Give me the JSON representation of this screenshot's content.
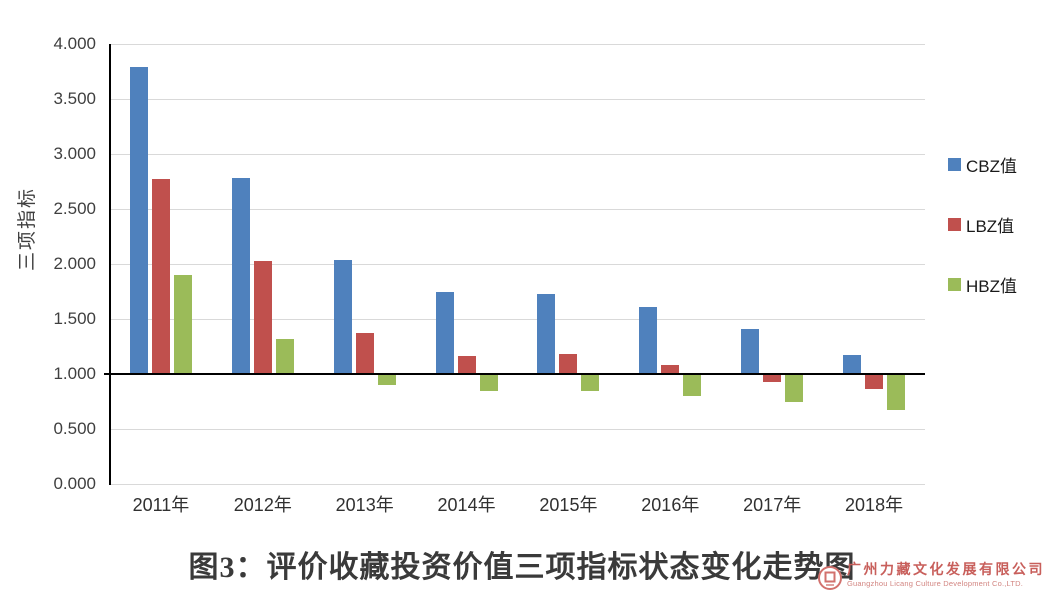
{
  "chart_data": {
    "type": "bar",
    "title": "图3：评价收藏投资价值三项指标状态变化走势图",
    "ylabel": "三项指标",
    "xlabel": "",
    "categories": [
      "2011年",
      "2012年",
      "2013年",
      "2014年",
      "2015年",
      "2016年",
      "2017年",
      "2018年"
    ],
    "series": [
      {
        "name": "CBZ值",
        "color": "#4F81BD",
        "values": [
          3.79,
          2.78,
          2.04,
          1.75,
          1.73,
          1.61,
          1.41,
          1.17
        ]
      },
      {
        "name": "LBZ值",
        "color": "#C0504D",
        "values": [
          2.77,
          2.03,
          1.37,
          1.16,
          1.18,
          1.08,
          0.93,
          0.86
        ]
      },
      {
        "name": "HBZ值",
        "color": "#9BBB59",
        "values": [
          1.9,
          1.32,
          0.9,
          0.85,
          0.85,
          0.8,
          0.75,
          0.67
        ]
      }
    ],
    "ylim": [
      0,
      4
    ],
    "ytick_step": 0.5,
    "ytick_decimals": 3,
    "baseline": 1.0,
    "grid": true,
    "legend_position": "right",
    "gridline_color": "#D9D9D9",
    "axis_color": "#000000"
  },
  "footer": {
    "title": "图3：评价收藏投资价值三项指标状态变化走势图",
    "logo": {
      "company_cn": "广州力藏文化发展有限公司",
      "company_en": "Guangzhou Licang Culture Development Co.,LTD.",
      "color": "#C85F5B"
    }
  }
}
